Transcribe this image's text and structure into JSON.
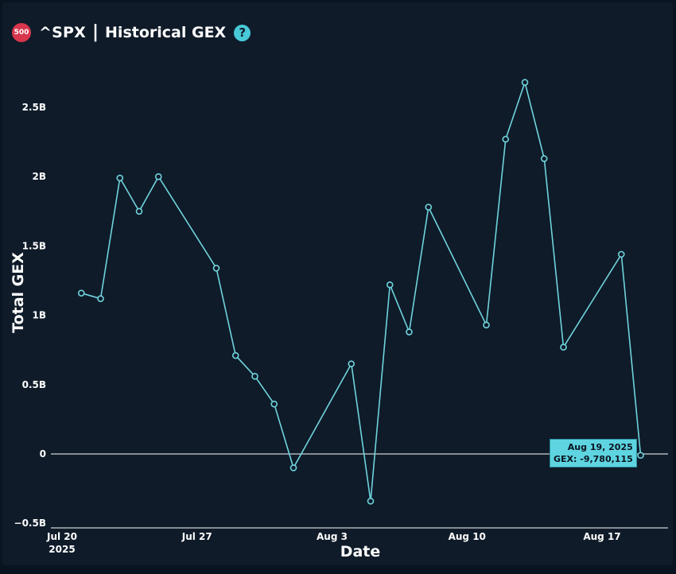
{
  "header": {
    "badge_label": "500",
    "ticker": "^SPX",
    "separator": "|",
    "title": "Historical GEX",
    "help_icon": "?"
  },
  "colors": {
    "line": "#6fd3dc",
    "tooltip_bg": "#5ed4e0",
    "badge": "#d8364d",
    "background": "#0f1b29"
  },
  "chart_data": {
    "type": "line",
    "xlabel": "Date",
    "ylabel": "Total GEX",
    "ylim": [
      -0.5,
      2.75
    ],
    "xlim": [
      "2025-07-20",
      "2025-08-20"
    ],
    "y_ticks": [
      {
        "value": -0.5,
        "label": "−0.5B"
      },
      {
        "value": 0,
        "label": "0"
      },
      {
        "value": 0.5,
        "label": "0.5B"
      },
      {
        "value": 1,
        "label": "1B"
      },
      {
        "value": 1.5,
        "label": "1.5B"
      },
      {
        "value": 2,
        "label": "2B"
      },
      {
        "value": 2.5,
        "label": "2.5B"
      }
    ],
    "x_ticks": [
      {
        "value": "2025-07-20",
        "label": "Jul 20",
        "sublabel": "2025"
      },
      {
        "value": "2025-07-27",
        "label": "Jul 27",
        "sublabel": ""
      },
      {
        "value": "2025-08-03",
        "label": "Aug 3",
        "sublabel": ""
      },
      {
        "value": "2025-08-10",
        "label": "Aug 10",
        "sublabel": ""
      },
      {
        "value": "2025-08-17",
        "label": "Aug 17",
        "sublabel": ""
      }
    ],
    "zero_line": true,
    "grid": false,
    "series": [
      {
        "x": [
          "2025-07-21",
          "2025-07-22",
          "2025-07-23",
          "2025-07-24",
          "2025-07-25",
          "2025-07-28",
          "2025-07-29",
          "2025-07-30",
          "2025-07-31",
          "2025-08-01",
          "2025-08-04",
          "2025-08-05",
          "2025-08-06",
          "2025-08-07",
          "2025-08-08",
          "2025-08-11",
          "2025-08-12",
          "2025-08-13",
          "2025-08-14",
          "2025-08-15",
          "2025-08-18",
          "2025-08-19"
        ],
        "y": [
          1.16,
          1.12,
          1.99,
          1.75,
          2.0,
          1.34,
          0.71,
          0.56,
          0.36,
          -0.1,
          0.65,
          -0.34,
          1.22,
          0.88,
          1.78,
          0.93,
          2.27,
          2.68,
          2.13,
          0.77,
          1.44,
          -0.01
        ]
      }
    ],
    "tooltip": {
      "date_label": "Aug 19, 2025",
      "value_label": "GEX: -9,780,115"
    }
  }
}
